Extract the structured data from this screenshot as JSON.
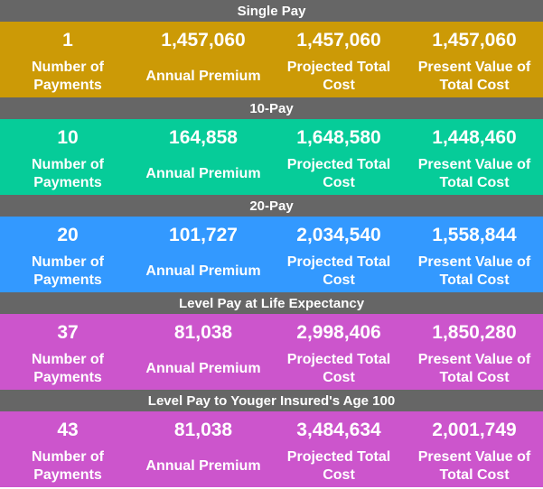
{
  "sections": [
    {
      "title": "Single Pay",
      "color": "#cc9a06",
      "cells": [
        {
          "value": "1",
          "label": "Number of Payments"
        },
        {
          "value": "1,457,060",
          "label": "Annual Premium"
        },
        {
          "value": "1,457,060",
          "label": "Projected Total Cost"
        },
        {
          "value": "1,457,060",
          "label": "Present Value of Total Cost"
        }
      ]
    },
    {
      "title": "10-Pay",
      "color": "#06cc99",
      "cells": [
        {
          "value": "10",
          "label": "Number of Payments"
        },
        {
          "value": "164,858",
          "label": "Annual Premium"
        },
        {
          "value": "1,648,580",
          "label": "Projected Total Cost"
        },
        {
          "value": "1,448,460",
          "label": "Present Value of Total Cost"
        }
      ]
    },
    {
      "title": "20-Pay",
      "color": "#3399ff",
      "cells": [
        {
          "value": "20",
          "label": "Number of Payments"
        },
        {
          "value": "101,727",
          "label": "Annual Premium"
        },
        {
          "value": "2,034,540",
          "label": "Projected Total Cost"
        },
        {
          "value": "1,558,844",
          "label": "Present Value of Total Cost"
        }
      ]
    },
    {
      "title": "Level Pay at Life Expectancy",
      "color": "#cc55cc",
      "cells": [
        {
          "value": "37",
          "label": "Number of Payments"
        },
        {
          "value": "81,038",
          "label": "Annual Premium"
        },
        {
          "value": "2,998,406",
          "label": "Projected Total Cost"
        },
        {
          "value": "1,850,280",
          "label": "Present Value of Total Cost"
        }
      ]
    },
    {
      "title": "Level Pay to Youger Insured's Age 100",
      "color": "#cc55cc",
      "cells": [
        {
          "value": "43",
          "label": "Number of Payments"
        },
        {
          "value": "81,038",
          "label": "Annual Premium"
        },
        {
          "value": "3,484,634",
          "label": "Projected Total Cost"
        },
        {
          "value": "2,001,749",
          "label": "Present Value of Total Cost"
        }
      ]
    }
  ]
}
